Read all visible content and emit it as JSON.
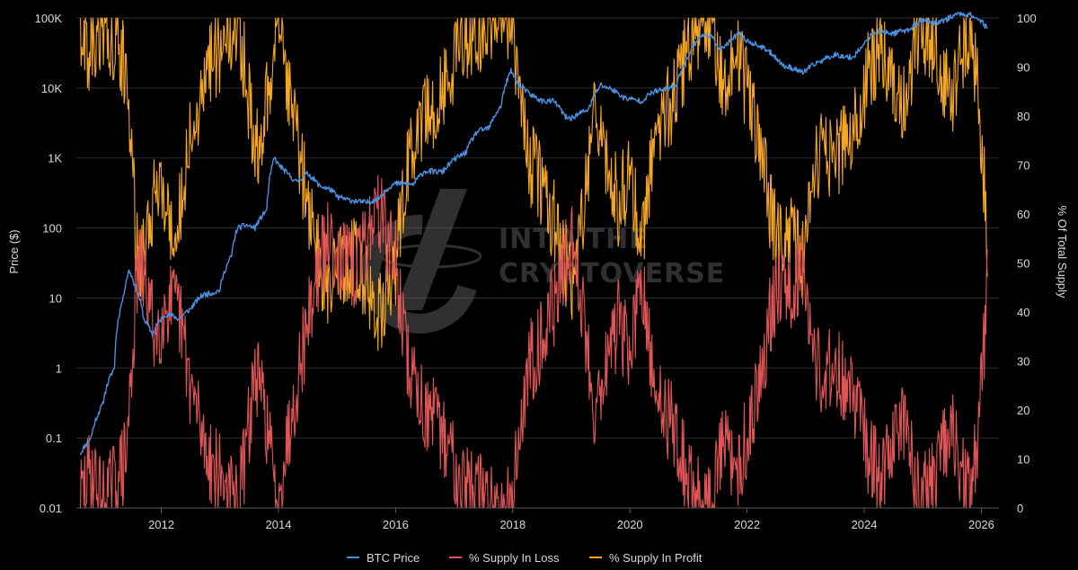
{
  "chart_data": {
    "type": "line",
    "title": "",
    "watermark": [
      "INTO THE",
      "CRYPTOVERSE"
    ],
    "xlabel": "",
    "ylabel_left": "Price ($)",
    "ylabel_right": "% Of Total Supply",
    "xlim": [
      2010.55,
      2026.3
    ],
    "x_ticks": [
      2012,
      2014,
      2016,
      2018,
      2020,
      2022,
      2024,
      2026
    ],
    "x_tick_labels": [
      "2012",
      "2014",
      "2016",
      "2018",
      "2020",
      "2022",
      "2024",
      "2026"
    ],
    "y_left_scale": "log",
    "y_left_lim": [
      0.01,
      100000
    ],
    "y_left_ticks": [
      0.01,
      0.1,
      1,
      10,
      100,
      1000,
      10000,
      100000
    ],
    "y_left_tick_labels": [
      "0.01",
      "0.1",
      "1",
      "10",
      "100",
      "1K",
      "10K",
      "100K"
    ],
    "y_right_lim": [
      0,
      100
    ],
    "y_right_ticks": [
      0,
      10,
      20,
      30,
      40,
      50,
      60,
      70,
      80,
      90,
      100
    ],
    "y_right_tick_labels": [
      "0",
      "10",
      "20",
      "30",
      "40",
      "50",
      "60",
      "70",
      "80",
      "90",
      "100"
    ],
    "legend_position": "bottom-center",
    "colors": {
      "background": "#000000",
      "grid": "#2f2f2f",
      "btc_price": "#4a90e2",
      "supply_loss": "#e05555",
      "supply_profit": "#f5a623"
    },
    "series": [
      {
        "name": "BTC Price",
        "axis": "left",
        "color": "#4a90e2",
        "x": [
          2010.62,
          2010.8,
          2011.0,
          2011.2,
          2011.35,
          2011.45,
          2011.55,
          2011.7,
          2011.85,
          2011.95,
          2012.1,
          2012.3,
          2012.5,
          2012.7,
          2012.9,
          2013.0,
          2013.2,
          2013.3,
          2013.45,
          2013.6,
          2013.8,
          2013.93,
          2014.0,
          2014.15,
          2014.3,
          2014.5,
          2014.7,
          2014.9,
          2015.0,
          2015.2,
          2015.5,
          2015.7,
          2015.9,
          2016.0,
          2016.3,
          2016.5,
          2016.8,
          2017.0,
          2017.2,
          2017.4,
          2017.6,
          2017.8,
          2017.97,
          2018.1,
          2018.3,
          2018.5,
          2018.7,
          2018.9,
          2019.0,
          2019.3,
          2019.5,
          2019.7,
          2019.9,
          2020.2,
          2020.4,
          2020.6,
          2020.8,
          2021.0,
          2021.2,
          2021.35,
          2021.55,
          2021.7,
          2021.85,
          2022.0,
          2022.2,
          2022.45,
          2022.6,
          2022.8,
          2022.95,
          2023.2,
          2023.5,
          2023.8,
          2024.0,
          2024.2,
          2024.5,
          2024.8,
          2025.0,
          2025.2,
          2025.4,
          2025.6,
          2025.8,
          2026.0,
          2026.1
        ],
        "values": [
          0.06,
          0.1,
          0.3,
          1.0,
          10,
          25,
          15,
          5,
          3,
          4.5,
          6,
          5,
          7,
          11,
          12,
          13,
          40,
          100,
          110,
          100,
          180,
          1000,
          800,
          600,
          450,
          600,
          400,
          350,
          280,
          250,
          230,
          260,
          390,
          430,
          420,
          650,
          630,
          950,
          1200,
          2400,
          2700,
          5500,
          17500,
          11000,
          8000,
          6500,
          6500,
          3800,
          3700,
          5000,
          11000,
          9500,
          7200,
          6500,
          8800,
          9500,
          11000,
          29000,
          55000,
          58000,
          35000,
          45000,
          60000,
          47000,
          40000,
          30000,
          21000,
          19000,
          16500,
          23000,
          30000,
          27000,
          42000,
          65000,
          60000,
          70000,
          95000,
          85000,
          95000,
          115000,
          112000,
          90000,
          70000
        ]
      },
      {
        "name": "% Supply In Loss",
        "axis": "right",
        "color": "#e05555",
        "x": [
          2010.62,
          2010.8,
          2011.0,
          2011.2,
          2011.4,
          2011.6,
          2011.75,
          2011.9,
          2012.1,
          2012.3,
          2012.5,
          2012.7,
          2012.9,
          2013.1,
          2013.2,
          2013.3,
          2013.45,
          2013.6,
          2013.8,
          2013.95,
          2014.1,
          2014.3,
          2014.5,
          2014.7,
          2014.9,
          2015.1,
          2015.3,
          2015.5,
          2015.7,
          2015.85,
          2016.0,
          2016.2,
          2016.5,
          2016.8,
          2017.0,
          2017.2,
          2017.4,
          2017.6,
          2017.8,
          2018.0,
          2018.1,
          2018.3,
          2018.5,
          2018.8,
          2019.0,
          2019.2,
          2019.4,
          2019.6,
          2019.8,
          2020.0,
          2020.2,
          2020.4,
          2020.6,
          2020.8,
          2021.0,
          2021.2,
          2021.4,
          2021.6,
          2021.8,
          2022.0,
          2022.2,
          2022.4,
          2022.6,
          2022.8,
          2022.95,
          2023.1,
          2023.3,
          2023.5,
          2023.7,
          2023.9,
          2024.1,
          2024.3,
          2024.5,
          2024.7,
          2024.9,
          2025.1,
          2025.3,
          2025.5,
          2025.7,
          2025.85,
          2026.0,
          2026.1
        ],
        "values": [
          2,
          8,
          1,
          5,
          10,
          50,
          45,
          35,
          42,
          40,
          25,
          15,
          8,
          5,
          2,
          0,
          12,
          28,
          18,
          2,
          10,
          25,
          38,
          50,
          55,
          50,
          48,
          55,
          62,
          55,
          50,
          30,
          20,
          15,
          10,
          5,
          3,
          2,
          1,
          0,
          15,
          30,
          35,
          45,
          55,
          40,
          20,
          30,
          38,
          32,
          45,
          25,
          20,
          15,
          5,
          2,
          1,
          15,
          5,
          15,
          25,
          40,
          48,
          45,
          50,
          35,
          25,
          30,
          25,
          20,
          10,
          5,
          15,
          18,
          5,
          3,
          10,
          15,
          5,
          3,
          25,
          45
        ]
      },
      {
        "name": "% Supply In Profit",
        "axis": "right",
        "color": "#f5a623",
        "x": [
          2010.62,
          2010.8,
          2011.0,
          2011.2,
          2011.4,
          2011.6,
          2011.75,
          2011.9,
          2012.1,
          2012.3,
          2012.5,
          2012.7,
          2012.9,
          2013.1,
          2013.2,
          2013.3,
          2013.45,
          2013.6,
          2013.8,
          2013.95,
          2014.1,
          2014.3,
          2014.5,
          2014.7,
          2014.9,
          2015.1,
          2015.3,
          2015.5,
          2015.7,
          2015.85,
          2016.0,
          2016.2,
          2016.5,
          2016.8,
          2017.0,
          2017.2,
          2017.4,
          2017.6,
          2017.8,
          2018.0,
          2018.1,
          2018.3,
          2018.5,
          2018.8,
          2019.0,
          2019.2,
          2019.4,
          2019.6,
          2019.8,
          2020.0,
          2020.2,
          2020.4,
          2020.6,
          2020.8,
          2021.0,
          2021.2,
          2021.4,
          2021.6,
          2021.8,
          2022.0,
          2022.2,
          2022.4,
          2022.6,
          2022.8,
          2022.95,
          2023.1,
          2023.3,
          2023.5,
          2023.7,
          2023.9,
          2024.1,
          2024.3,
          2024.5,
          2024.7,
          2024.9,
          2025.1,
          2025.3,
          2025.5,
          2025.7,
          2025.85,
          2026.0,
          2026.1
        ],
        "values": [
          98,
          92,
          99,
          95,
          90,
          50,
          55,
          65,
          58,
          60,
          75,
          85,
          92,
          95,
          98,
          100,
          88,
          72,
          82,
          98,
          90,
          75,
          62,
          50,
          45,
          50,
          52,
          45,
          38,
          45,
          50,
          70,
          80,
          85,
          90,
          95,
          97,
          98,
          99,
          100,
          85,
          70,
          65,
          55,
          45,
          60,
          80,
          70,
          62,
          68,
          55,
          75,
          80,
          85,
          95,
          98,
          99,
          85,
          95,
          85,
          75,
          60,
          52,
          55,
          50,
          65,
          75,
          70,
          75,
          80,
          90,
          95,
          85,
          82,
          95,
          97,
          90,
          85,
          95,
          97,
          75,
          55
        ]
      }
    ]
  }
}
